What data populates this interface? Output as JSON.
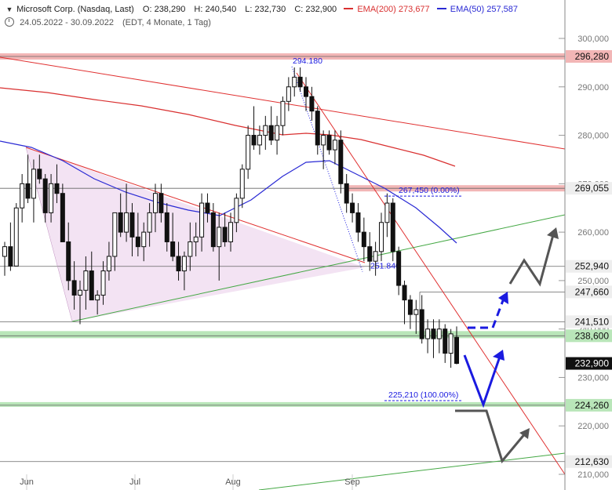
{
  "header": {
    "instrument": "Microsoft Corp. (Nasdaq, Last)",
    "open": "O: 238,290",
    "high": "H: 240,540",
    "low": "L: 232,730",
    "close": "C: 232,900",
    "ema200_label": "EMA(200)",
    "ema200_value": "273,677",
    "ema50_label": "EMA(50)",
    "ema50_value": "257,587",
    "date_range": "24.05.2022 - 30.09.2022",
    "timeframe": "(EDT, 4 Monate, 1 Tag)"
  },
  "colors": {
    "ema200": "#d93030",
    "ema50": "#2a2ad4",
    "support_zone": "#b9e6b9",
    "resistance_zone": "#f2b6b6",
    "triangle_fill": "#f3e3f3",
    "trendline_red": "#e03030",
    "trendline_green": "#44a844",
    "arrow_blue": "#1a1ae0",
    "arrow_gray": "#555555"
  },
  "chart_data": {
    "type": "candlestick",
    "y_ticks": [
      210000,
      220000,
      230000,
      240000,
      250000,
      260000,
      270000,
      280000,
      290000,
      300000
    ],
    "y_tick_labels": [
      "210,000",
      "220,000",
      "230,000",
      "240,000",
      "250,000",
      "260,000",
      "270,000",
      "280,000",
      "290,000",
      "300,000"
    ],
    "ylim": [
      209000,
      304000
    ],
    "x_labels": [
      "Jun",
      "Jul",
      "Aug",
      "Sep"
    ],
    "horizontal_levels": [
      {
        "value": 296.28,
        "label": "296,280",
        "style": "zone-red"
      },
      {
        "value": 269.055,
        "label": "269,055",
        "style": "line"
      },
      {
        "value": 252.94,
        "label": "252,940",
        "style": "line"
      },
      {
        "value": 247.66,
        "label": "247,660",
        "style": "line"
      },
      {
        "value": 241.51,
        "label": "241,510",
        "style": "line"
      },
      {
        "value": 238.6,
        "label": "238,600",
        "style": "zone-green"
      },
      {
        "value": 232.9,
        "label": "232,900",
        "style": "current"
      },
      {
        "value": 224.26,
        "label": "224,260",
        "style": "zone-green"
      },
      {
        "value": 212.63,
        "label": "212,630",
        "style": "line"
      }
    ],
    "annotations": [
      {
        "text": "294.180",
        "value": 294.18
      },
      {
        "text": "267,450 (0.00%)",
        "value": 267.45
      },
      {
        "text": "251.840",
        "value": 251.84
      },
      {
        "text": "225,210 (100.00%)",
        "value": 225.21
      }
    ],
    "candles": [
      [
        255,
        258,
        251,
        257
      ],
      [
        257,
        262,
        252,
        253
      ],
      [
        253,
        266,
        253,
        265
      ],
      [
        265,
        272,
        262,
        270
      ],
      [
        270,
        276,
        266,
        267
      ],
      [
        267,
        275,
        262,
        273
      ],
      [
        273,
        276,
        270,
        271
      ],
      [
        271,
        272,
        262,
        264
      ],
      [
        264,
        272,
        262,
        270
      ],
      [
        270,
        274,
        266,
        268
      ],
      [
        268,
        270,
        258,
        258
      ],
      [
        258,
        262,
        248,
        250
      ],
      [
        250,
        254,
        244,
        247
      ],
      [
        247,
        250,
        241,
        248
      ],
      [
        248,
        255,
        244,
        252
      ],
      [
        252,
        256,
        246,
        246
      ],
      [
        246,
        248,
        243,
        247
      ],
      [
        247,
        254,
        245,
        252
      ],
      [
        252,
        258,
        250,
        255
      ],
      [
        255,
        264,
        252,
        264
      ],
      [
        264,
        268,
        259,
        260
      ],
      [
        260,
        270,
        258,
        264
      ],
      [
        264,
        266,
        255,
        259
      ],
      [
        259,
        264,
        255,
        257
      ],
      [
        257,
        262,
        254,
        260
      ],
      [
        260,
        266,
        257,
        264
      ],
      [
        264,
        270,
        260,
        268
      ],
      [
        268,
        270,
        262,
        264
      ],
      [
        264,
        266,
        256,
        258
      ],
      [
        258,
        264,
        254,
        255
      ],
      [
        255,
        258,
        250,
        252
      ],
      [
        252,
        256,
        248,
        255
      ],
      [
        255,
        262,
        252,
        258
      ],
      [
        258,
        262,
        255,
        259
      ],
      [
        259,
        268,
        256,
        266
      ],
      [
        266,
        268,
        262,
        264
      ],
      [
        264,
        266,
        256,
        257
      ],
      [
        257,
        264,
        250,
        261
      ],
      [
        261,
        264,
        257,
        258
      ],
      [
        258,
        264,
        256,
        262
      ],
      [
        262,
        268,
        260,
        267
      ],
      [
        267,
        274,
        265,
        273
      ],
      [
        273,
        282,
        271,
        280
      ],
      [
        280,
        286,
        277,
        278
      ],
      [
        278,
        282,
        276,
        280
      ],
      [
        280,
        284,
        277,
        282
      ],
      [
        282,
        286,
        278,
        279
      ],
      [
        279,
        284,
        276,
        282
      ],
      [
        282,
        288,
        280,
        287
      ],
      [
        287,
        292,
        285,
        290
      ],
      [
        290,
        294,
        288,
        292
      ],
      [
        292,
        294,
        289,
        290
      ],
      [
        290,
        292,
        285,
        288
      ],
      [
        288,
        290,
        283,
        285
      ],
      [
        285,
        286,
        276,
        278
      ],
      [
        278,
        281,
        273,
        280
      ],
      [
        280,
        281,
        276,
        277
      ],
      [
        277,
        281,
        274,
        279
      ],
      [
        279,
        281,
        268,
        270
      ],
      [
        270,
        272,
        264,
        266
      ],
      [
        266,
        268,
        262,
        264
      ],
      [
        264,
        266,
        258,
        260
      ],
      [
        260,
        263,
        254,
        257
      ],
      [
        257,
        260,
        252,
        254
      ],
      [
        254,
        258,
        251,
        256
      ],
      [
        256,
        264,
        254,
        262
      ],
      [
        262,
        268,
        259,
        266
      ],
      [
        266,
        267,
        254,
        256
      ],
      [
        256,
        257,
        247,
        249
      ],
      [
        249,
        250,
        241,
        246
      ],
      [
        246,
        247,
        240,
        243
      ],
      [
        243,
        246,
        239,
        244
      ],
      [
        244,
        247,
        237,
        238
      ],
      [
        238,
        242,
        235,
        240
      ],
      [
        240,
        242,
        234,
        238
      ],
      [
        238,
        242,
        235,
        240
      ],
      [
        240,
        241,
        233,
        235
      ],
      [
        235,
        240,
        232,
        239
      ],
      [
        238.29,
        240.54,
        232.73,
        232.9
      ]
    ]
  }
}
